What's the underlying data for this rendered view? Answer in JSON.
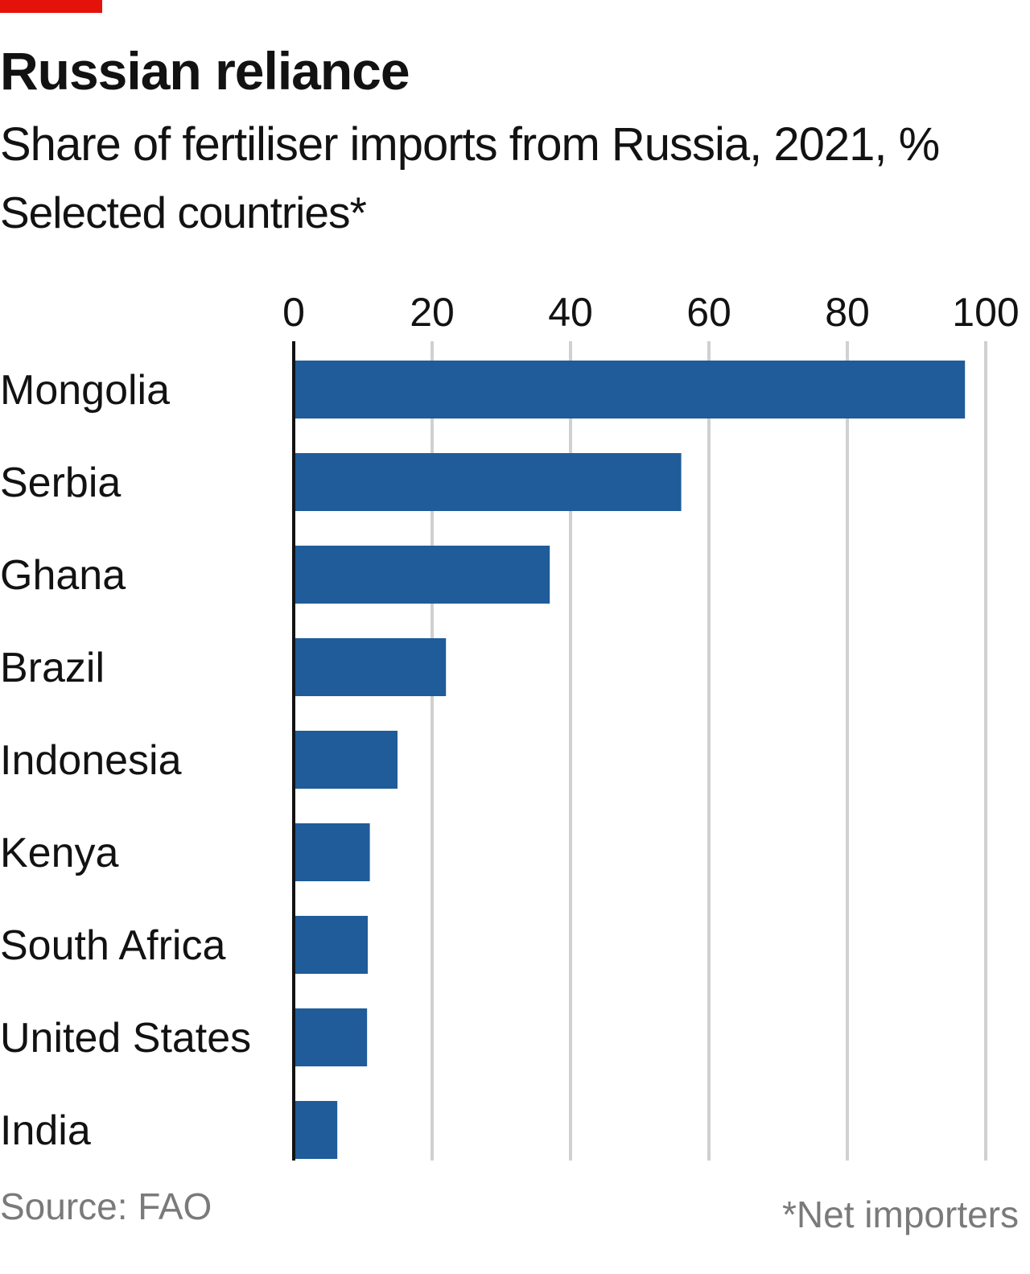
{
  "header": {
    "title": "Russian reliance",
    "subtitle": "Share of fertiliser imports from Russia, 2021, %",
    "note": "Selected countries*"
  },
  "footer": {
    "source": "Source: FAO",
    "footnote": "*Net importers"
  },
  "colors": {
    "accent": "#e3120b",
    "bar": "#1f5c99",
    "grid": "#d0d0d0",
    "axis": "#121212"
  },
  "chart_data": {
    "type": "bar",
    "orientation": "horizontal",
    "title": "Russian reliance",
    "subtitle": "Share of fertiliser imports from Russia, 2021, %",
    "categories": [
      "Mongolia",
      "Serbia",
      "Ghana",
      "Brazil",
      "Indonesia",
      "Kenya",
      "South Africa",
      "United States",
      "India"
    ],
    "values": [
      97,
      56,
      37,
      22,
      15,
      11,
      10.7,
      10.6,
      6.3
    ],
    "xlim": [
      0,
      100
    ],
    "xticks": [
      0,
      20,
      40,
      60,
      80,
      100
    ],
    "xtick_labels": [
      "0",
      "20",
      "40",
      "60",
      "80",
      "100"
    ],
    "grid": true,
    "legend": "none"
  }
}
